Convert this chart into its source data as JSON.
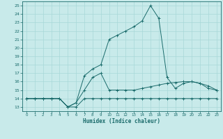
{
  "title": "",
  "xlabel": "Humidex (Indice chaleur)",
  "xlim": [
    -0.5,
    23.5
  ],
  "ylim": [
    12.5,
    25.5
  ],
  "yticks": [
    13,
    14,
    15,
    16,
    17,
    18,
    19,
    20,
    21,
    22,
    23,
    24,
    25
  ],
  "xticks": [
    0,
    1,
    2,
    3,
    4,
    5,
    6,
    7,
    8,
    9,
    10,
    11,
    12,
    13,
    14,
    15,
    16,
    17,
    18,
    19,
    20,
    21,
    22,
    23
  ],
  "xtick_labels": [
    "0",
    "1",
    "2",
    "3",
    "4",
    "5",
    "6",
    "7",
    "8",
    "9",
    "10",
    "11",
    "12",
    "13",
    "14",
    "15",
    "16",
    "17",
    "18",
    "19",
    "20",
    "21",
    "22",
    "23"
  ],
  "background_color": "#c8eaea",
  "line_color": "#1a6b6b",
  "grid_color": "#a8d8d8",
  "line1_x": [
    0,
    1,
    2,
    3,
    4,
    5,
    6,
    7,
    8,
    9,
    10,
    11,
    12,
    13,
    14,
    15,
    16,
    17,
    18,
    19,
    20,
    21,
    22,
    23
  ],
  "line1_y": [
    14,
    14,
    14,
    14,
    14,
    13,
    13,
    14,
    14,
    14,
    14,
    14,
    14,
    14,
    14,
    14,
    14,
    14,
    14,
    14,
    14,
    14,
    14,
    14
  ],
  "line2_x": [
    0,
    1,
    2,
    3,
    4,
    5,
    6,
    7,
    8,
    9,
    10,
    11,
    12,
    13,
    14,
    15,
    16,
    17,
    18,
    19,
    20,
    21,
    22,
    23
  ],
  "line2_y": [
    14,
    14,
    14,
    14,
    14,
    13,
    13.5,
    15,
    16.5,
    17,
    15,
    15,
    15,
    15,
    15.2,
    15.4,
    15.6,
    15.8,
    15.9,
    16,
    16,
    15.8,
    15.5,
    15
  ],
  "line3_x": [
    0,
    1,
    2,
    3,
    4,
    5,
    6,
    7,
    8,
    9,
    10,
    11,
    12,
    13,
    14,
    15,
    16,
    17,
    18,
    19,
    20,
    21,
    22,
    23
  ],
  "line3_y": [
    14,
    14,
    14,
    14,
    14,
    13,
    13.5,
    16.7,
    17.5,
    18,
    21,
    21.5,
    22,
    22.5,
    23.2,
    25,
    23.5,
    16.5,
    15.2,
    15.8,
    16,
    15.8,
    15.2,
    15
  ]
}
